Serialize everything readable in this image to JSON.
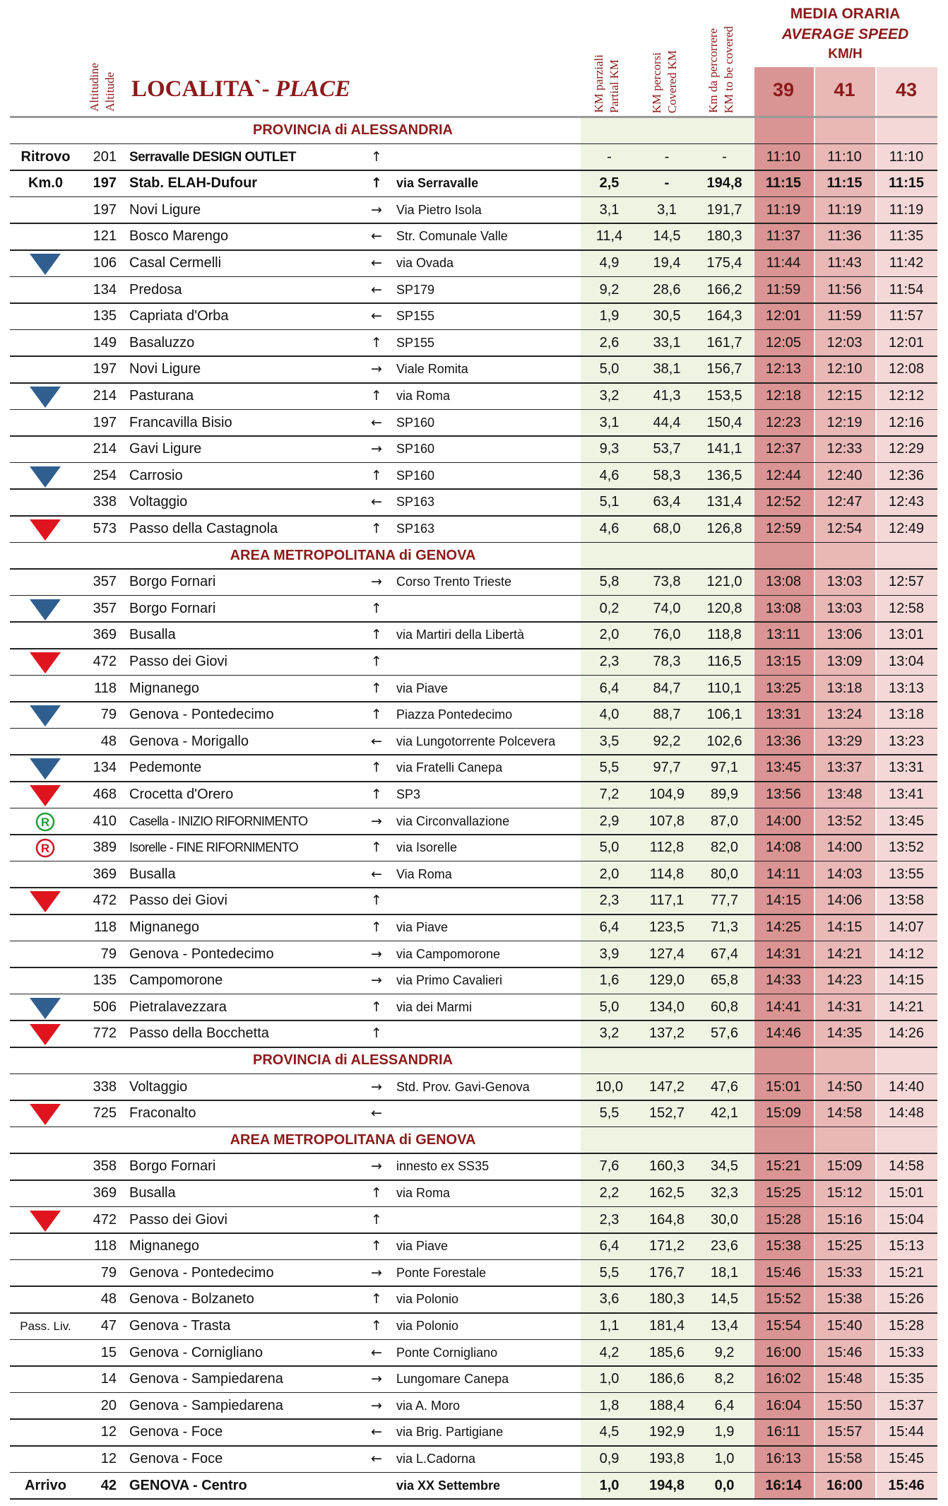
{
  "header": {
    "altitude": [
      "Altitudine",
      "Altitude"
    ],
    "place_label": "LOCALITA`- ",
    "place_label_italic": "PLACE",
    "partial": [
      "KM parziali",
      "Partial KM"
    ],
    "covered": [
      "KM percorsi",
      "Covered KM"
    ],
    "remaining": [
      "Km da percorrere",
      "KM to be covered"
    ],
    "speed_title": "MEDIA ORARIA",
    "speed_subtitle": "AVERAGE SPEED",
    "speed_unit": "KM/H",
    "speeds": [
      "39",
      "41",
      "43"
    ]
  },
  "body": [
    {
      "section": "PROVINCIA di ALESSANDRIA"
    },
    {
      "label": "Ritrovo",
      "alt": "201",
      "place": "Serravalle DESIGN OUTLET",
      "place_bold": true,
      "dir": "↑",
      "partial": "-",
      "covered": "-",
      "remaining": "-",
      "times": [
        "11:10",
        "11:10",
        "11:10"
      ]
    },
    {
      "label": "Km.0",
      "alt": "197",
      "place": "Stab. ELAH-Dufour",
      "dir": "↑",
      "road": "via Serravalle",
      "partial": "2,5",
      "covered": "-",
      "remaining": "194,8",
      "times": [
        "11:15",
        "11:15",
        "11:15"
      ],
      "bold": true
    },
    {
      "alt": "197",
      "place": "Novi Ligure",
      "dir": "→",
      "road": "Via Pietro Isola",
      "partial": "3,1",
      "covered": "3,1",
      "remaining": "191,7",
      "times": [
        "11:19",
        "11:19",
        "11:19"
      ]
    },
    {
      "alt": "121",
      "place": "Bosco Marengo",
      "dir": "←",
      "road": "Str. Comunale Valle",
      "partial": "11,4",
      "covered": "14,5",
      "remaining": "180,3",
      "times": [
        "11:37",
        "11:36",
        "11:35"
      ]
    },
    {
      "marker": {
        "shape": "triangle",
        "color": "#2f5f8f"
      },
      "alt": "106",
      "place": "Casal Cermelli",
      "dir": "←",
      "road": "via Ovada",
      "partial": "4,9",
      "covered": "19,4",
      "remaining": "175,4",
      "times": [
        "11:44",
        "11:43",
        "11:42"
      ]
    },
    {
      "alt": "134",
      "place": "Predosa",
      "dir": "←",
      "road": "SP179",
      "partial": "9,2",
      "covered": "28,6",
      "remaining": "166,2",
      "times": [
        "11:59",
        "11:56",
        "11:54"
      ]
    },
    {
      "alt": "135",
      "place": "Capriata d'Orba",
      "dir": "←",
      "road": "SP155",
      "partial": "1,9",
      "covered": "30,5",
      "remaining": "164,3",
      "times": [
        "12:01",
        "11:59",
        "11:57"
      ]
    },
    {
      "alt": "149",
      "place": "Basaluzzo",
      "dir": "↑",
      "road": "SP155",
      "partial": "2,6",
      "covered": "33,1",
      "remaining": "161,7",
      "times": [
        "12:05",
        "12:03",
        "12:01"
      ]
    },
    {
      "alt": "197",
      "place": "Novi Ligure",
      "dir": "→",
      "road": "Viale Romita",
      "partial": "5,0",
      "covered": "38,1",
      "remaining": "156,7",
      "times": [
        "12:13",
        "12:10",
        "12:08"
      ]
    },
    {
      "marker": {
        "shape": "triangle",
        "color": "#2f5f8f"
      },
      "alt": "214",
      "place": "Pasturana",
      "dir": "↑",
      "road": "via Roma",
      "partial": "3,2",
      "covered": "41,3",
      "remaining": "153,5",
      "times": [
        "12:18",
        "12:15",
        "12:12"
      ]
    },
    {
      "alt": "197",
      "place": "Francavilla Bisio",
      "dir": "←",
      "road": "SP160",
      "partial": "3,1",
      "covered": "44,4",
      "remaining": "150,4",
      "times": [
        "12:23",
        "12:19",
        "12:16"
      ]
    },
    {
      "alt": "214",
      "place": "Gavi Ligure",
      "dir": "→",
      "road": "SP160",
      "partial": "9,3",
      "covered": "53,7",
      "remaining": "141,1",
      "times": [
        "12:37",
        "12:33",
        "12:29"
      ]
    },
    {
      "marker": {
        "shape": "triangle",
        "color": "#2f5f8f"
      },
      "alt": "254",
      "place": "Carrosio",
      "dir": "↑",
      "road": "SP160",
      "partial": "4,6",
      "covered": "58,3",
      "remaining": "136,5",
      "times": [
        "12:44",
        "12:40",
        "12:36"
      ]
    },
    {
      "alt": "338",
      "place": "Voltaggio",
      "dir": "←",
      "road": "SP163",
      "partial": "5,1",
      "covered": "63,4",
      "remaining": "131,4",
      "times": [
        "12:52",
        "12:47",
        "12:43"
      ]
    },
    {
      "marker": {
        "shape": "triangle",
        "color": "#e0141e"
      },
      "alt": "573",
      "place": "Passo della Castagnola",
      "dir": "↑",
      "road": "SP163",
      "partial": "4,6",
      "covered": "68,0",
      "remaining": "126,8",
      "times": [
        "12:59",
        "12:54",
        "12:49"
      ]
    },
    {
      "section": "AREA METROPOLITANA di GENOVA"
    },
    {
      "alt": "357",
      "place": "Borgo Fornari",
      "dir": "→",
      "road": "Corso Trento Trieste",
      "partial": "5,8",
      "covered": "73,8",
      "remaining": "121,0",
      "times": [
        "13:08",
        "13:03",
        "12:57"
      ]
    },
    {
      "marker": {
        "shape": "triangle",
        "color": "#2f5f8f"
      },
      "alt": "357",
      "place": "Borgo Fornari",
      "dir": "↑",
      "partial": "0,2",
      "covered": "74,0",
      "remaining": "120,8",
      "times": [
        "13:08",
        "13:03",
        "12:58"
      ]
    },
    {
      "alt": "369",
      "place": "Busalla",
      "dir": "↑",
      "road": "via Martiri della Libertà",
      "partial": "2,0",
      "covered": "76,0",
      "remaining": "118,8",
      "times": [
        "13:11",
        "13:06",
        "13:01"
      ]
    },
    {
      "marker": {
        "shape": "triangle",
        "color": "#e0141e"
      },
      "alt": "472",
      "place": "Passo dei Giovi",
      "dir": "↑",
      "partial": "2,3",
      "covered": "78,3",
      "remaining": "116,5",
      "times": [
        "13:15",
        "13:09",
        "13:04"
      ]
    },
    {
      "alt": "118",
      "place": "Mignanego",
      "dir": "↑",
      "road": "via Piave",
      "partial": "6,4",
      "covered": "84,7",
      "remaining": "110,1",
      "times": [
        "13:25",
        "13:18",
        "13:13"
      ]
    },
    {
      "marker": {
        "shape": "triangle",
        "color": "#2f5f8f"
      },
      "alt": "79",
      "place": "Genova - Pontedecimo",
      "dir": "↑",
      "road": "Piazza Pontedecimo",
      "partial": "4,0",
      "covered": "88,7",
      "remaining": "106,1",
      "times": [
        "13:31",
        "13:24",
        "13:18"
      ]
    },
    {
      "alt": "48",
      "place": "Genova - Morigallo",
      "dir": "←",
      "road": "via Lungotorrente Polcevera",
      "partial": "3,5",
      "covered": "92,2",
      "remaining": "102,6",
      "times": [
        "13:36",
        "13:29",
        "13:23"
      ]
    },
    {
      "marker": {
        "shape": "triangle",
        "color": "#2f5f8f"
      },
      "alt": "134",
      "place": "Pedemonte",
      "dir": "↑",
      "road": "via Fratelli Canepa",
      "partial": "5,5",
      "covered": "97,7",
      "remaining": "97,1",
      "times": [
        "13:45",
        "13:37",
        "13:31"
      ]
    },
    {
      "marker": {
        "shape": "triangle",
        "color": "#e0141e"
      },
      "alt": "468",
      "place": "Crocetta d'Orero",
      "dir": "↑",
      "road": "SP3",
      "partial": "7,2",
      "covered": "104,9",
      "remaining": "89,9",
      "times": [
        "13:56",
        "13:48",
        "13:41"
      ]
    },
    {
      "marker": {
        "shape": "circle",
        "color": "#1e9e3a",
        "text": "R"
      },
      "alt": "410",
      "place": "Casella - INIZIO RIFORNIMENTO",
      "place_narrow": true,
      "dir": "→",
      "road": "via Circonvallazione",
      "partial": "2,9",
      "covered": "107,8",
      "remaining": "87,0",
      "times": [
        "14:00",
        "13:52",
        "13:45"
      ]
    },
    {
      "marker": {
        "shape": "circle",
        "color": "#d0141e",
        "text": "R"
      },
      "alt": "389",
      "place": "Isorelle - FINE RIFORNIMENTO",
      "place_narrow": true,
      "dir": "↑",
      "road": "via Isorelle",
      "partial": "5,0",
      "covered": "112,8",
      "remaining": "82,0",
      "times": [
        "14:08",
        "14:00",
        "13:52"
      ]
    },
    {
      "alt": "369",
      "place": "Busalla",
      "dir": "←",
      "road": "Via Roma",
      "partial": "2,0",
      "covered": "114,8",
      "remaining": "80,0",
      "times": [
        "14:11",
        "14:03",
        "13:55"
      ]
    },
    {
      "marker": {
        "shape": "triangle",
        "color": "#e0141e"
      },
      "alt": "472",
      "place": "Passo dei Giovi",
      "dir": "↑",
      "partial": "2,3",
      "covered": "117,1",
      "remaining": "77,7",
      "times": [
        "14:15",
        "14:06",
        "13:58"
      ]
    },
    {
      "alt": "118",
      "place": "Mignanego",
      "dir": "↑",
      "road": "via Piave",
      "partial": "6,4",
      "covered": "123,5",
      "remaining": "71,3",
      "times": [
        "14:25",
        "14:15",
        "14:07"
      ]
    },
    {
      "alt": "79",
      "place": "Genova - Pontedecimo",
      "dir": "→",
      "road": "via Campomorone",
      "partial": "3,9",
      "covered": "127,4",
      "remaining": "67,4",
      "times": [
        "14:31",
        "14:21",
        "14:12"
      ]
    },
    {
      "alt": "135",
      "place": "Campomorone",
      "dir": "→",
      "road": "via Primo Cavalieri",
      "partial": "1,6",
      "covered": "129,0",
      "remaining": "65,8",
      "times": [
        "14:33",
        "14:23",
        "14:15"
      ]
    },
    {
      "marker": {
        "shape": "triangle",
        "color": "#2f5f8f"
      },
      "alt": "506",
      "place": "Pietralavezzara",
      "dir": "↑",
      "road": "via dei Marmi",
      "partial": "5,0",
      "covered": "134,0",
      "remaining": "60,8",
      "times": [
        "14:41",
        "14:31",
        "14:21"
      ]
    },
    {
      "marker": {
        "shape": "triangle",
        "color": "#e0141e"
      },
      "alt": "772",
      "place": "Passo della Bocchetta",
      "dir": "↑",
      "partial": "3,2",
      "covered": "137,2",
      "remaining": "57,6",
      "times": [
        "14:46",
        "14:35",
        "14:26"
      ]
    },
    {
      "section": "PROVINCIA di ALESSANDRIA"
    },
    {
      "alt": "338",
      "place": "Voltaggio",
      "dir": "→",
      "road": "Std. Prov. Gavi-Genova",
      "partial": "10,0",
      "covered": "147,2",
      "remaining": "47,6",
      "times": [
        "15:01",
        "14:50",
        "14:40"
      ]
    },
    {
      "marker": {
        "shape": "triangle",
        "color": "#e0141e"
      },
      "alt": "725",
      "place": "Fraconalto",
      "dir": "←",
      "partial": "5,5",
      "covered": "152,7",
      "remaining": "42,1",
      "times": [
        "15:09",
        "14:58",
        "14:48"
      ]
    },
    {
      "section": "AREA METROPOLITANA di GENOVA"
    },
    {
      "alt": "358",
      "place": "Borgo Fornari",
      "dir": "→",
      "road": "innesto ex SS35",
      "partial": "7,6",
      "covered": "160,3",
      "remaining": "34,5",
      "times": [
        "15:21",
        "15:09",
        "14:58"
      ]
    },
    {
      "alt": "369",
      "place": "Busalla",
      "dir": "↑",
      "road": "via Roma",
      "partial": "2,2",
      "covered": "162,5",
      "remaining": "32,3",
      "times": [
        "15:25",
        "15:12",
        "15:01"
      ]
    },
    {
      "marker": {
        "shape": "triangle",
        "color": "#e0141e"
      },
      "alt": "472",
      "place": "Passo dei Giovi",
      "dir": "↑",
      "partial": "2,3",
      "covered": "164,8",
      "remaining": "30,0",
      "times": [
        "15:28",
        "15:16",
        "15:04"
      ]
    },
    {
      "alt": "118",
      "place": "Mignanego",
      "dir": "↑",
      "road": "via Piave",
      "partial": "6,4",
      "covered": "171,2",
      "remaining": "23,6",
      "times": [
        "15:38",
        "15:25",
        "15:13"
      ]
    },
    {
      "alt": "79",
      "place": "Genova - Pontedecimo",
      "dir": "→",
      "road": "Ponte Forestale",
      "partial": "5,5",
      "covered": "176,7",
      "remaining": "18,1",
      "times": [
        "15:46",
        "15:33",
        "15:21"
      ]
    },
    {
      "alt": "48",
      "place": "Genova - Bolzaneto",
      "dir": "↑",
      "road": "via Polonio",
      "partial": "3,6",
      "covered": "180,3",
      "remaining": "14,5",
      "times": [
        "15:52",
        "15:38",
        "15:26"
      ]
    },
    {
      "label": "Pass. Liv.",
      "label_small": true,
      "alt": "47",
      "place": "Genova - Trasta",
      "dir": "↑",
      "road": "via Polonio",
      "partial": "1,1",
      "covered": "181,4",
      "remaining": "13,4",
      "times": [
        "15:54",
        "15:40",
        "15:28"
      ]
    },
    {
      "alt": "15",
      "place": "Genova - Cornigliano",
      "dir": "←",
      "road": "Ponte Cornigliano",
      "partial": "4,2",
      "covered": "185,6",
      "remaining": "9,2",
      "times": [
        "16:00",
        "15:46",
        "15:33"
      ]
    },
    {
      "alt": "14",
      "place": "Genova - Sampiedarena",
      "dir": "→",
      "road": "Lungomare Canepa",
      "partial": "1,0",
      "covered": "186,6",
      "remaining": "8,2",
      "times": [
        "16:02",
        "15:48",
        "15:35"
      ]
    },
    {
      "alt": "20",
      "place": "Genova - Sampiedarena",
      "dir": "→",
      "road": "via A. Moro",
      "partial": "1,8",
      "covered": "188,4",
      "remaining": "6,4",
      "times": [
        "16:04",
        "15:50",
        "15:37"
      ]
    },
    {
      "alt": "12",
      "place": "Genova - Foce",
      "dir": "←",
      "road": "via Brig. Partigiane",
      "partial": "4,5",
      "covered": "192,9",
      "remaining": "1,9",
      "times": [
        "16:11",
        "15:57",
        "15:44"
      ]
    },
    {
      "alt": "12",
      "place": "Genova - Foce",
      "dir": "←",
      "road": "via L.Cadorna",
      "partial": "0,9",
      "covered": "193,8",
      "remaining": "1,0",
      "times": [
        "16:13",
        "15:58",
        "15:45"
      ]
    },
    {
      "label": "Arrivo",
      "alt": "42",
      "place": "GENOVA - Centro",
      "road": "via XX Settembre",
      "partial": "1,0",
      "covered": "194,8",
      "remaining": "0,0",
      "times": [
        "16:14",
        "16:00",
        "15:46"
      ],
      "bold": true
    }
  ]
}
